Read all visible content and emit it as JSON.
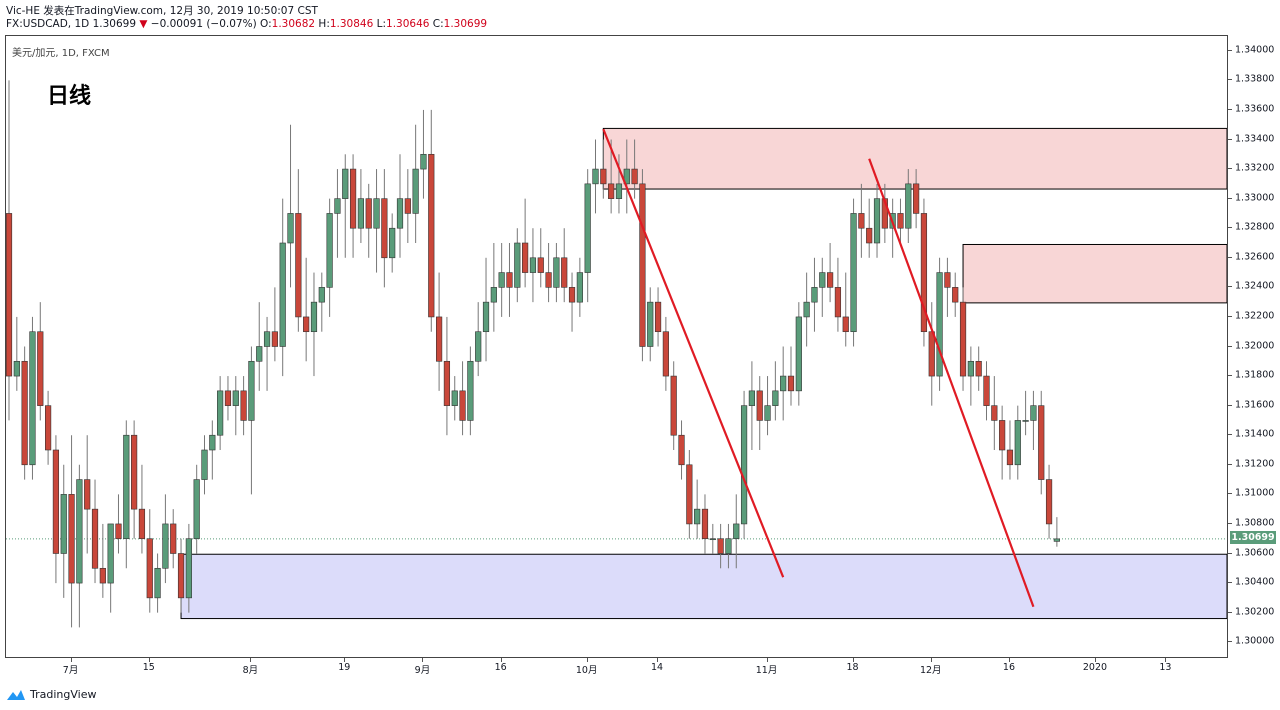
{
  "header": {
    "line1": "Vic-HE 发表在TradingView.com, 12月 30, 2019 10:50:07 CST",
    "pair": "FX:USDCAD, 1D",
    "price": "1.30699",
    "arrow": "▼",
    "change": "−0.00091 (−0.07%)",
    "o_label": "O:",
    "o_value": "1.30682",
    "h_label": "H:",
    "h_value": "1.30846",
    "l_label": "L:",
    "l_value": "1.30646",
    "c_label": "C:",
    "c_value": "1.30699"
  },
  "chart_label": {
    "symbol": "美元/加元, 1D, FXCM",
    "timeframe": "日线"
  },
  "footer": {
    "brand": "TradingView"
  },
  "colors": {
    "up": "#5a9c7a",
    "down": "#c9473a",
    "resistance": "#f8d6d6",
    "support": "#dcdcfa",
    "trendline": "#e01b24",
    "last_price": "#5a9c7a"
  },
  "chart_data": {
    "type": "candlestick",
    "title": "",
    "ylim": [
      1.299,
      1.341
    ],
    "y_ticks": [
      "1.34000",
      "1.33800",
      "1.33600",
      "1.33400",
      "1.33200",
      "1.33000",
      "1.32800",
      "1.32600",
      "1.32400",
      "1.32200",
      "1.32000",
      "1.31800",
      "1.31600",
      "1.31400",
      "1.31200",
      "1.31000",
      "1.30800",
      "1.30600",
      "1.30400",
      "1.30200",
      "1.30000"
    ],
    "x_tick_labels": [
      {
        "label": "7月",
        "bar": 8
      },
      {
        "label": "15",
        "bar": 18
      },
      {
        "label": "8月",
        "bar": 31
      },
      {
        "label": "19",
        "bar": 43
      },
      {
        "label": "9月",
        "bar": 53
      },
      {
        "label": "16",
        "bar": 63
      },
      {
        "label": "10月",
        "bar": 74
      },
      {
        "label": "14",
        "bar": 83
      },
      {
        "label": "11月",
        "bar": 97
      },
      {
        "label": "18",
        "bar": 108
      },
      {
        "label": "12月",
        "bar": 118
      },
      {
        "label": "16",
        "bar": 128
      },
      {
        "label": "2020",
        "bar": 139
      },
      {
        "label": "13",
        "bar": 148
      }
    ],
    "last_price": 1.30699,
    "candles": [
      [
        1.329,
        1.338,
        1.315,
        1.318
      ],
      [
        1.318,
        1.322,
        1.317,
        1.319
      ],
      [
        1.319,
        1.32,
        1.311,
        1.312
      ],
      [
        1.312,
        1.322,
        1.311,
        1.321
      ],
      [
        1.321,
        1.323,
        1.315,
        1.316
      ],
      [
        1.316,
        1.317,
        1.312,
        1.313
      ],
      [
        1.313,
        1.314,
        1.304,
        1.306
      ],
      [
        1.306,
        1.312,
        1.303,
        1.31
      ],
      [
        1.31,
        1.314,
        1.301,
        1.304
      ],
      [
        1.304,
        1.312,
        1.301,
        1.311
      ],
      [
        1.311,
        1.314,
        1.306,
        1.309
      ],
      [
        1.309,
        1.311,
        1.304,
        1.305
      ],
      [
        1.305,
        1.308,
        1.303,
        1.304
      ],
      [
        1.304,
        1.308,
        1.302,
        1.308
      ],
      [
        1.308,
        1.31,
        1.306,
        1.307
      ],
      [
        1.307,
        1.315,
        1.305,
        1.314
      ],
      [
        1.314,
        1.315,
        1.307,
        1.309
      ],
      [
        1.309,
        1.312,
        1.306,
        1.307
      ],
      [
        1.307,
        1.309,
        1.302,
        1.303
      ],
      [
        1.303,
        1.306,
        1.302,
        1.305
      ],
      [
        1.305,
        1.31,
        1.304,
        1.308
      ],
      [
        1.308,
        1.309,
        1.305,
        1.306
      ],
      [
        1.306,
        1.307,
        1.302,
        1.303
      ],
      [
        1.303,
        1.308,
        1.302,
        1.307
      ],
      [
        1.307,
        1.312,
        1.306,
        1.311
      ],
      [
        1.311,
        1.314,
        1.31,
        1.313
      ],
      [
        1.313,
        1.315,
        1.311,
        1.314
      ],
      [
        1.314,
        1.318,
        1.313,
        1.317
      ],
      [
        1.317,
        1.318,
        1.315,
        1.316
      ],
      [
        1.316,
        1.318,
        1.314,
        1.317
      ],
      [
        1.317,
        1.318,
        1.314,
        1.315
      ],
      [
        1.315,
        1.32,
        1.31,
        1.319
      ],
      [
        1.319,
        1.323,
        1.317,
        1.32
      ],
      [
        1.32,
        1.322,
        1.317,
        1.321
      ],
      [
        1.321,
        1.324,
        1.319,
        1.32
      ],
      [
        1.32,
        1.33,
        1.318,
        1.327
      ],
      [
        1.327,
        1.335,
        1.324,
        1.329
      ],
      [
        1.329,
        1.332,
        1.321,
        1.322
      ],
      [
        1.322,
        1.326,
        1.319,
        1.321
      ],
      [
        1.321,
        1.325,
        1.318,
        1.323
      ],
      [
        1.323,
        1.325,
        1.321,
        1.324
      ],
      [
        1.324,
        1.33,
        1.322,
        1.329
      ],
      [
        1.329,
        1.332,
        1.326,
        1.33
      ],
      [
        1.33,
        1.333,
        1.326,
        1.332
      ],
      [
        1.332,
        1.333,
        1.326,
        1.328
      ],
      [
        1.328,
        1.332,
        1.327,
        1.33
      ],
      [
        1.33,
        1.331,
        1.326,
        1.328
      ],
      [
        1.328,
        1.332,
        1.325,
        1.33
      ],
      [
        1.33,
        1.332,
        1.324,
        1.326
      ],
      [
        1.326,
        1.329,
        1.325,
        1.328
      ],
      [
        1.328,
        1.333,
        1.326,
        1.33
      ],
      [
        1.33,
        1.332,
        1.327,
        1.329
      ],
      [
        1.329,
        1.335,
        1.327,
        1.332
      ],
      [
        1.332,
        1.336,
        1.33,
        1.333
      ],
      [
        1.333,
        1.336,
        1.321,
        1.322
      ],
      [
        1.322,
        1.325,
        1.317,
        1.319
      ],
      [
        1.319,
        1.322,
        1.314,
        1.316
      ],
      [
        1.316,
        1.318,
        1.315,
        1.317
      ],
      [
        1.317,
        1.319,
        1.314,
        1.315
      ],
      [
        1.315,
        1.32,
        1.314,
        1.319
      ],
      [
        1.319,
        1.323,
        1.318,
        1.321
      ],
      [
        1.321,
        1.326,
        1.319,
        1.323
      ],
      [
        1.323,
        1.327,
        1.321,
        1.324
      ],
      [
        1.324,
        1.327,
        1.322,
        1.325
      ],
      [
        1.325,
        1.327,
        1.322,
        1.324
      ],
      [
        1.324,
        1.328,
        1.323,
        1.327
      ],
      [
        1.327,
        1.33,
        1.324,
        1.325
      ],
      [
        1.325,
        1.328,
        1.323,
        1.326
      ],
      [
        1.326,
        1.328,
        1.324,
        1.325
      ],
      [
        1.325,
        1.327,
        1.323,
        1.324
      ],
      [
        1.324,
        1.327,
        1.323,
        1.326
      ],
      [
        1.326,
        1.328,
        1.323,
        1.324
      ],
      [
        1.324,
        1.325,
        1.321,
        1.323
      ],
      [
        1.323,
        1.326,
        1.322,
        1.325
      ],
      [
        1.325,
        1.332,
        1.323,
        1.331
      ],
      [
        1.331,
        1.334,
        1.329,
        1.332
      ],
      [
        1.332,
        1.334,
        1.33,
        1.331
      ],
      [
        1.331,
        1.334,
        1.329,
        1.33
      ],
      [
        1.33,
        1.333,
        1.329,
        1.331
      ],
      [
        1.331,
        1.334,
        1.329,
        1.332
      ],
      [
        1.332,
        1.334,
        1.33,
        1.331
      ],
      [
        1.331,
        1.332,
        1.319,
        1.32
      ],
      [
        1.32,
        1.324,
        1.319,
        1.323
      ],
      [
        1.323,
        1.324,
        1.32,
        1.321
      ],
      [
        1.321,
        1.322,
        1.317,
        1.318
      ],
      [
        1.318,
        1.319,
        1.313,
        1.314
      ],
      [
        1.314,
        1.315,
        1.311,
        1.312
      ],
      [
        1.312,
        1.313,
        1.307,
        1.308
      ],
      [
        1.308,
        1.311,
        1.307,
        1.309
      ],
      [
        1.309,
        1.31,
        1.306,
        1.307
      ],
      [
        1.307,
        1.308,
        1.306,
        1.307
      ],
      [
        1.307,
        1.308,
        1.305,
        1.306
      ],
      [
        1.306,
        1.308,
        1.305,
        1.307
      ],
      [
        1.307,
        1.31,
        1.305,
        1.308
      ],
      [
        1.308,
        1.317,
        1.307,
        1.316
      ],
      [
        1.316,
        1.319,
        1.313,
        1.317
      ],
      [
        1.317,
        1.318,
        1.313,
        1.315
      ],
      [
        1.315,
        1.318,
        1.314,
        1.316
      ],
      [
        1.316,
        1.319,
        1.315,
        1.317
      ],
      [
        1.317,
        1.32,
        1.315,
        1.318
      ],
      [
        1.318,
        1.32,
        1.316,
        1.317
      ],
      [
        1.317,
        1.323,
        1.316,
        1.322
      ],
      [
        1.322,
        1.325,
        1.32,
        1.323
      ],
      [
        1.323,
        1.326,
        1.321,
        1.324
      ],
      [
        1.324,
        1.326,
        1.322,
        1.325
      ],
      [
        1.325,
        1.327,
        1.323,
        1.324
      ],
      [
        1.324,
        1.326,
        1.321,
        1.322
      ],
      [
        1.322,
        1.325,
        1.32,
        1.321
      ],
      [
        1.321,
        1.33,
        1.32,
        1.329
      ],
      [
        1.329,
        1.331,
        1.326,
        1.328
      ],
      [
        1.328,
        1.33,
        1.326,
        1.327
      ],
      [
        1.327,
        1.331,
        1.326,
        1.33
      ],
      [
        1.33,
        1.331,
        1.327,
        1.328
      ],
      [
        1.328,
        1.33,
        1.326,
        1.329
      ],
      [
        1.329,
        1.33,
        1.327,
        1.328
      ],
      [
        1.328,
        1.332,
        1.327,
        1.331
      ],
      [
        1.331,
        1.332,
        1.328,
        1.329
      ],
      [
        1.329,
        1.33,
        1.32,
        1.321
      ],
      [
        1.321,
        1.323,
        1.316,
        1.318
      ],
      [
        1.318,
        1.326,
        1.317,
        1.325
      ],
      [
        1.325,
        1.326,
        1.322,
        1.324
      ],
      [
        1.324,
        1.325,
        1.322,
        1.323
      ],
      [
        1.323,
        1.324,
        1.317,
        1.318
      ],
      [
        1.318,
        1.32,
        1.316,
        1.319
      ],
      [
        1.319,
        1.32,
        1.317,
        1.318
      ],
      [
        1.318,
        1.319,
        1.315,
        1.316
      ],
      [
        1.316,
        1.318,
        1.313,
        1.315
      ],
      [
        1.315,
        1.316,
        1.311,
        1.313
      ],
      [
        1.313,
        1.315,
        1.311,
        1.312
      ],
      [
        1.312,
        1.316,
        1.311,
        1.315
      ],
      [
        1.315,
        1.317,
        1.314,
        1.315
      ],
      [
        1.315,
        1.317,
        1.313,
        1.316
      ],
      [
        1.316,
        1.317,
        1.31,
        1.311
      ],
      [
        1.311,
        1.312,
        1.307,
        1.308
      ],
      [
        1.30682,
        1.30846,
        1.30646,
        1.30699
      ]
    ],
    "zones": [
      {
        "name": "resistance-zone-1",
        "from_bar": 76,
        "y_low": 1.33065,
        "y_high": 1.33475
      },
      {
        "name": "resistance-zone-2",
        "from_bar": 122,
        "y_low": 1.32295,
        "y_high": 1.3269
      },
      {
        "name": "support-zone",
        "from_bar": 22,
        "y_low": 1.3016,
        "y_high": 1.30595
      }
    ],
    "trendlines": [
      {
        "name": "trendline-1",
        "from": [
          76,
          1.3347
        ],
        "to": [
          99,
          1.3044
        ]
      },
      {
        "name": "trendline-2",
        "from": [
          110,
          1.3327
        ],
        "to": [
          131,
          1.3024
        ]
      }
    ]
  }
}
